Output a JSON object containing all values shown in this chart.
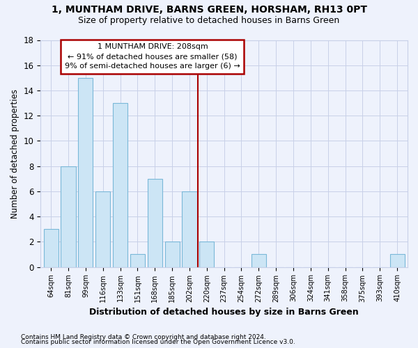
{
  "title1": "1, MUNTHAM DRIVE, BARNS GREEN, HORSHAM, RH13 0PT",
  "title2": "Size of property relative to detached houses in Barns Green",
  "xlabel": "Distribution of detached houses by size in Barns Green",
  "ylabel": "Number of detached properties",
  "categories": [
    "64sqm",
    "81sqm",
    "99sqm",
    "116sqm",
    "133sqm",
    "151sqm",
    "168sqm",
    "185sqm",
    "202sqm",
    "220sqm",
    "237sqm",
    "254sqm",
    "272sqm",
    "289sqm",
    "306sqm",
    "324sqm",
    "341sqm",
    "358sqm",
    "375sqm",
    "393sqm",
    "410sqm"
  ],
  "values": [
    3,
    8,
    15,
    6,
    13,
    1,
    7,
    2,
    6,
    2,
    0,
    0,
    1,
    0,
    0,
    0,
    0,
    0,
    0,
    0,
    1
  ],
  "bar_color": "#cce5f5",
  "bar_edge_color": "#7ab8d8",
  "red_line_x": 8.5,
  "annotation_text_line1": "1 MUNTHAM DRIVE: 208sqm",
  "annotation_text_line2": "← 91% of detached houses are smaller (58)",
  "annotation_text_line3": "9% of semi-detached houses are larger (6) →",
  "annotation_box_color": "#ffffff",
  "annotation_box_edge": "#aa0000",
  "footnote1": "Contains HM Land Registry data © Crown copyright and database right 2024.",
  "footnote2": "Contains public sector information licensed under the Open Government Licence v3.0.",
  "background_color": "#eef2fc",
  "grid_color": "#c8d0e8",
  "ylim": [
    0,
    18
  ],
  "yticks": [
    0,
    2,
    4,
    6,
    8,
    10,
    12,
    14,
    16,
    18
  ]
}
